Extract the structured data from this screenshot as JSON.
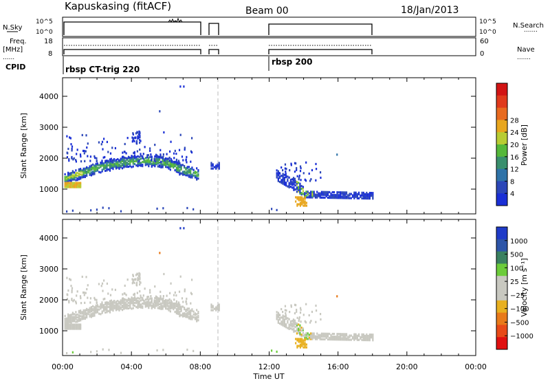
{
  "header": {
    "station": "Kapuskasing (fitACF)",
    "beam": "Beam 00",
    "date": "18/Jan/2013"
  },
  "labels": {
    "nsky": "N.Sky",
    "nsearch": "N.Search",
    "freq_line1": "Freq.",
    "freq_line2": "[MHz]",
    "nave": "Nave",
    "cpid": "CPID",
    "left_dot_legend": "......",
    "right_dot_legend": "......."
  },
  "ticks": {
    "nsky_left": [
      "10^5",
      "10^0"
    ],
    "nsky_right": [
      "10^5",
      "10^0"
    ],
    "freq_left": [
      "18",
      "8"
    ],
    "nave_right": [
      "60",
      "0"
    ]
  },
  "cpid": [
    {
      "start": "00:00",
      "label": "rbsp CT-trig 220"
    },
    {
      "start": "12:00",
      "label": "rbsp 200"
    }
  ],
  "chart_data": [
    {
      "type": "heatmap",
      "name": "power",
      "ylabel": "Slant Range [km]",
      "ylim": [
        200,
        4600
      ],
      "yticks": [
        "1000",
        "2000",
        "3000",
        "4000"
      ],
      "xlim_hours": [
        0,
        24
      ],
      "colorbar_label": "Power [dB]",
      "colorbar_ticks": [
        "4",
        "8",
        "12",
        "16",
        "20",
        "24",
        "28"
      ],
      "colors": [
        "#1a2fd6",
        "#2c47b8",
        "#2f73a8",
        "#3a8f6d",
        "#55b83a",
        "#b8cc33",
        "#e8a61e",
        "#e86a1f",
        "#e03a1c",
        "#d21414"
      ],
      "time_gaps_hours": [
        [
          8.05,
          8.55
        ],
        [
          9.1,
          12.0
        ],
        [
          18.0,
          24.0
        ]
      ],
      "scatter_bands": [
        {
          "t0": 0.1,
          "t1": 7.9,
          "note": "main arc",
          "r_start": 1300,
          "r_peak": 1950,
          "peak_t": 5.0
        },
        {
          "t0": 8.6,
          "t1": 9.05,
          "r": 1800
        },
        {
          "t0": 12.5,
          "t1": 18.0,
          "r_start": 1350,
          "r_end": 780
        }
      ]
    },
    {
      "type": "heatmap",
      "name": "velocity",
      "ylabel": "Slant Range [km]",
      "ylim": [
        200,
        4600
      ],
      "yticks": [
        "1000",
        "2000",
        "3000",
        "4000"
      ],
      "xlim_hours": [
        0,
        24
      ],
      "xticks": [
        "00:00",
        "04:00",
        "08:00",
        "12:00",
        "16:00",
        "20:00",
        "00:00"
      ],
      "xlabel": "Time UT",
      "colorbar_label": "Velocity [m s⁻¹]",
      "colorbar_ticks": [
        "1000",
        "500",
        "100",
        "25",
        "−25",
        "−100",
        "−500",
        "−1000"
      ],
      "colors": [
        "#1f3bc8",
        "#2d55a8",
        "#3a8060",
        "#6ccc3a",
        "#c8c8c0",
        "#c8c8c0",
        "#e8b020",
        "#e87a1a",
        "#e84a18",
        "#e01010"
      ]
    }
  ]
}
